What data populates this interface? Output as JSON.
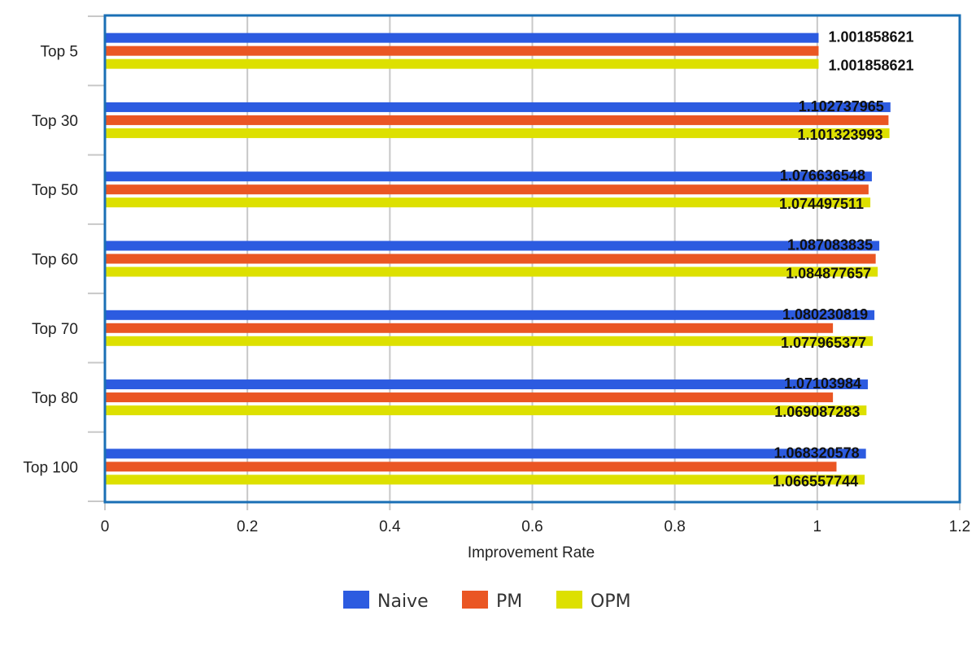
{
  "chart_data": {
    "type": "bar",
    "orientation": "horizontal",
    "title": "",
    "xlabel": "Improvement Rate",
    "ylabel": "",
    "xlim": [
      0,
      1.2
    ],
    "xticks": [
      "0",
      "0.2",
      "0.4",
      "0.6",
      "0.8",
      "1",
      "1.2"
    ],
    "grid": true,
    "legend_position": "bottom",
    "categories": [
      "Top 5",
      "Top 30",
      "Top 50",
      "Top 60",
      "Top 70",
      "Top 80",
      "Top 100"
    ],
    "series": [
      {
        "name": "Naive",
        "color": "#2c5be0",
        "values": [
          1.001858621,
          1.102737965,
          1.076636548,
          1.087083835,
          1.080230819,
          1.07103984,
          1.068320578
        ],
        "labels": [
          "1.001858621",
          "1.102737965",
          "1.076636548",
          "1.087083835",
          "1.080230819",
          "1.07103984",
          "1.068320578"
        ]
      },
      {
        "name": "PM",
        "color": "#ea5623",
        "values": [
          1.001858621,
          1.1,
          1.072,
          1.082,
          1.022,
          1.022,
          1.027
        ],
        "labels": [
          "",
          "",
          "",
          "",
          "",
          "",
          ""
        ]
      },
      {
        "name": "OPM",
        "color": "#dde000",
        "values": [
          1.001858621,
          1.101323993,
          1.074497511,
          1.084877657,
          1.077965377,
          1.069087283,
          1.066557744
        ],
        "labels": [
          "1.001858621",
          "1.101323993",
          "1.074497511",
          "1.084877657",
          "1.077965377",
          "1.069087283",
          "1.066557744"
        ]
      }
    ]
  }
}
